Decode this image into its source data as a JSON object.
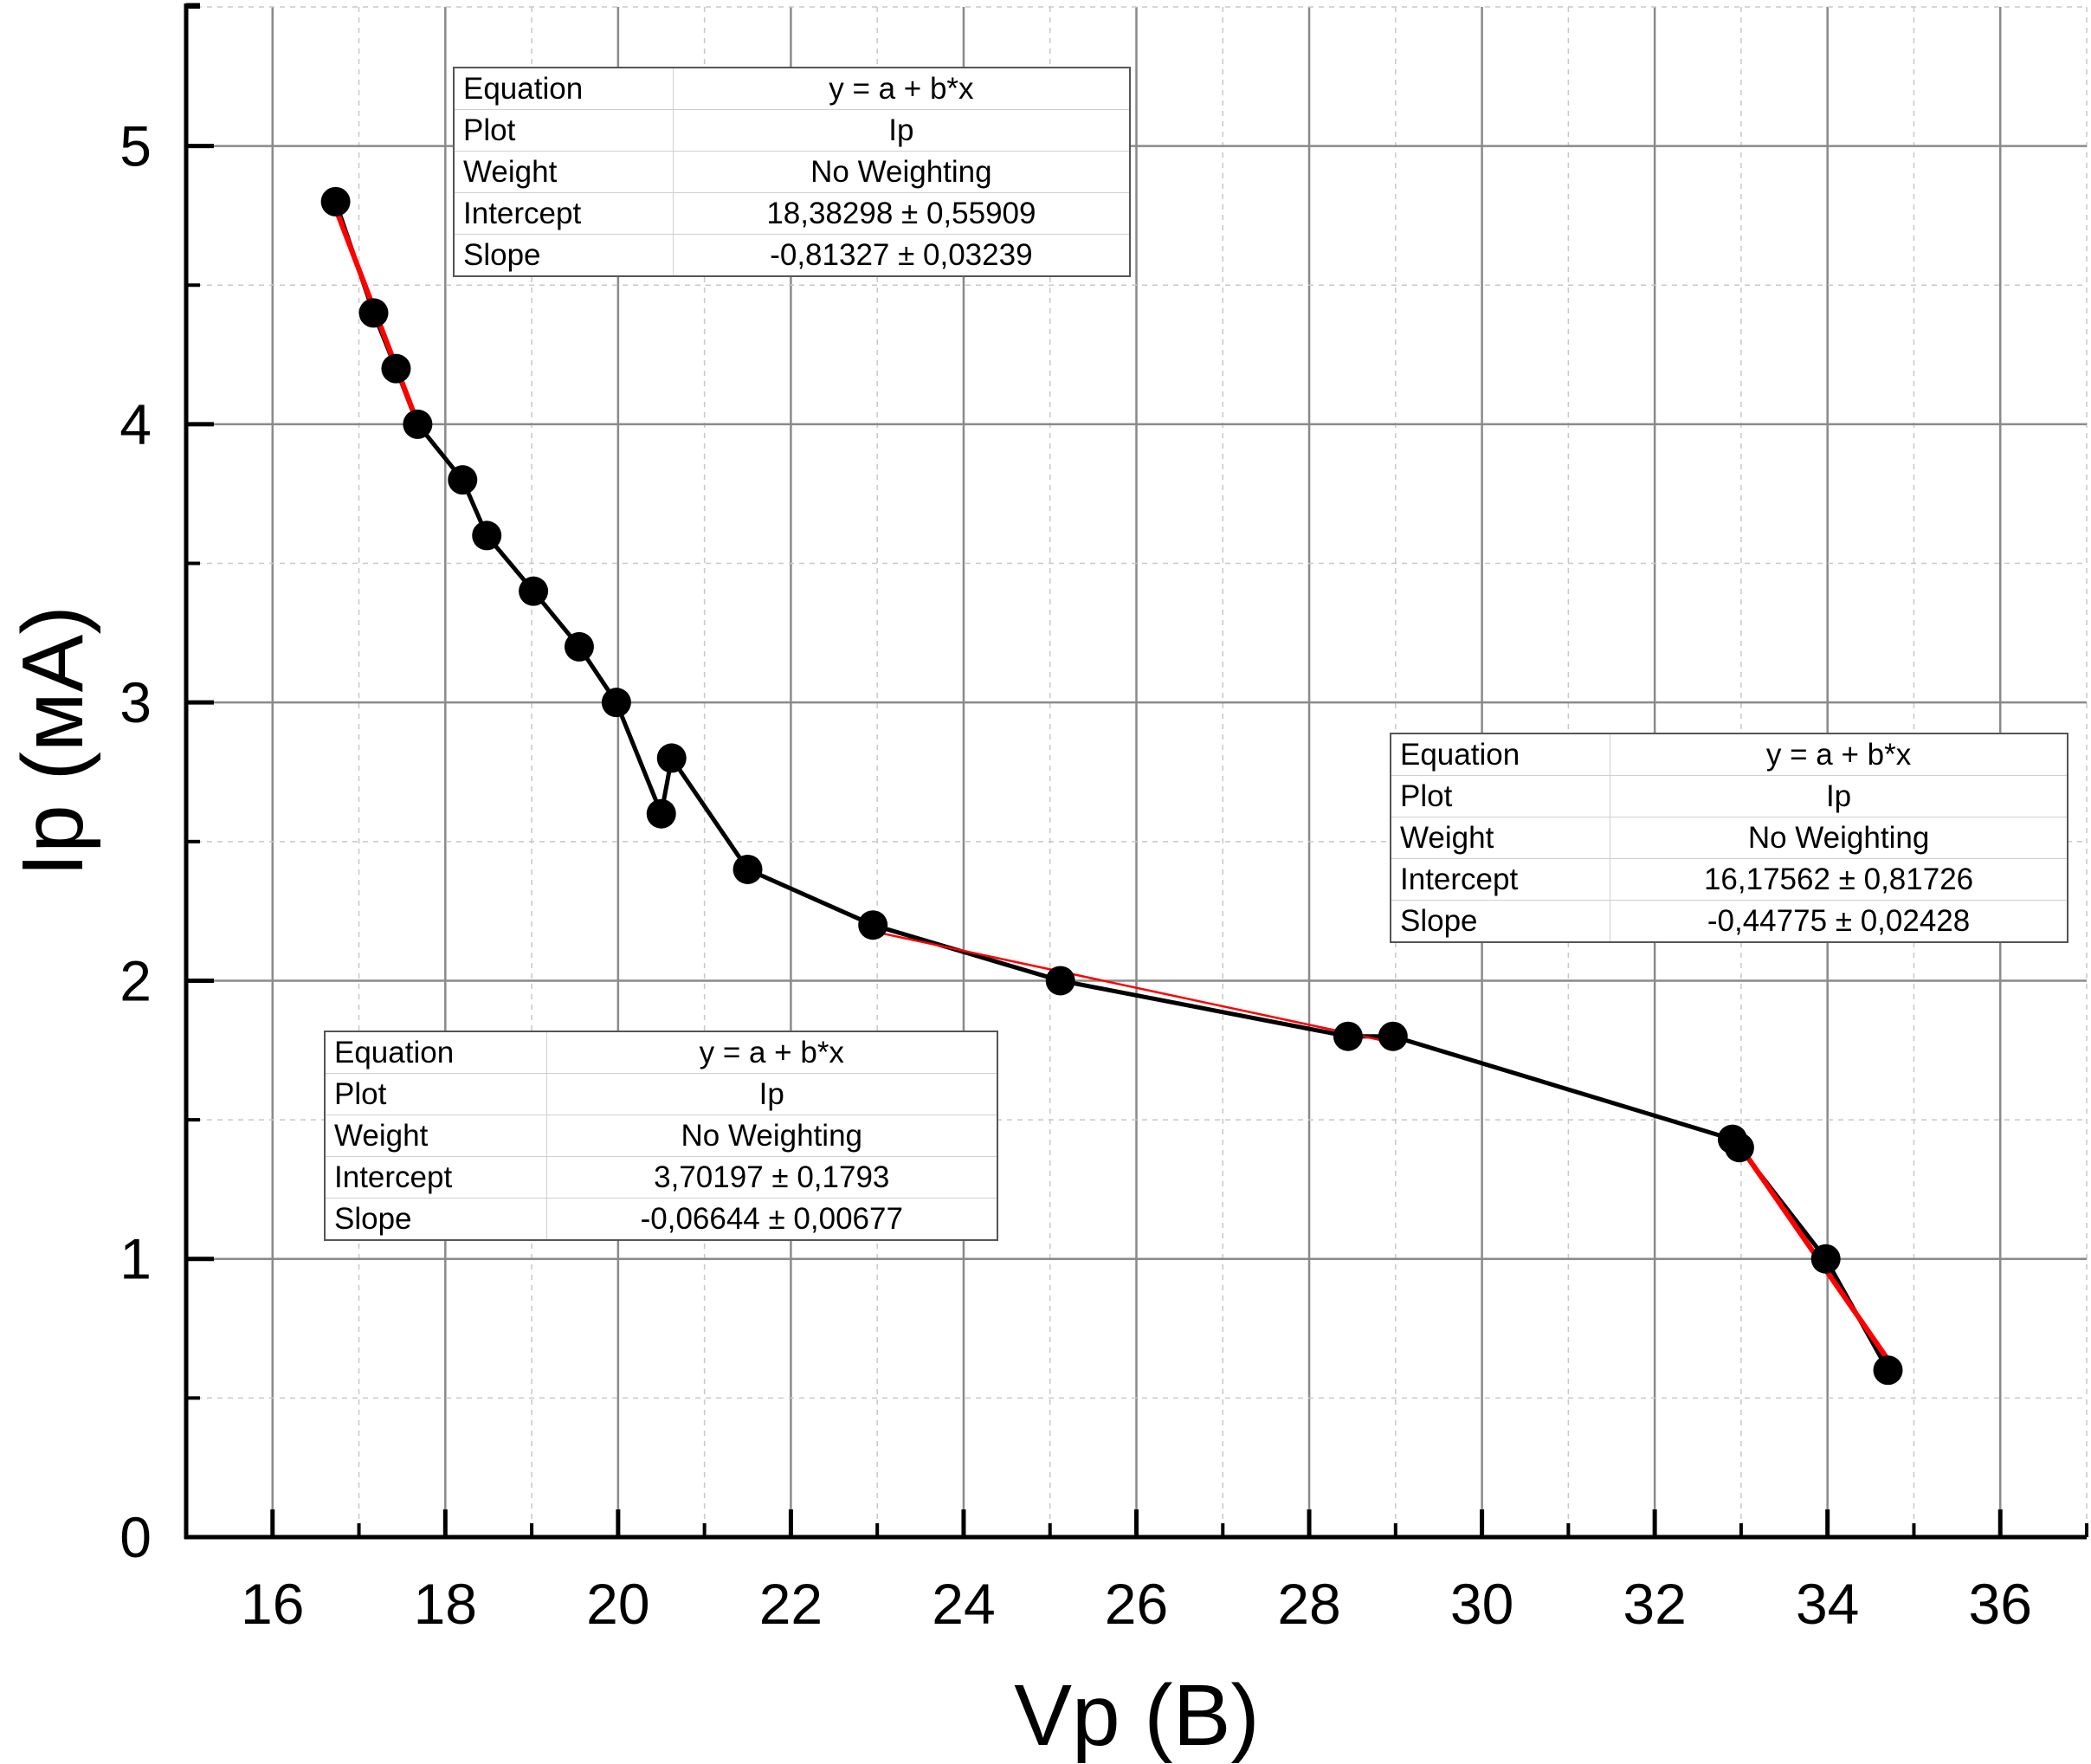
{
  "chart_data": {
    "type": "scatter",
    "xlabel": "Vp (B)",
    "ylabel": "Ip (мА)",
    "xlim": [
      15,
      37
    ],
    "ylim": [
      0,
      5.5
    ],
    "x_ticks": [
      "16",
      "18",
      "20",
      "22",
      "24",
      "26",
      "28",
      "30",
      "32",
      "34",
      "36"
    ],
    "y_ticks": [
      "0",
      "1",
      "2",
      "3",
      "4",
      "5"
    ],
    "grid": true,
    "series": [
      {
        "name": "Ip",
        "style": "line+markers",
        "x": [
          16.73,
          17.17,
          17.43,
          17.68,
          18.2,
          18.48,
          19.02,
          19.55,
          19.98,
          20.5,
          20.62,
          21.5,
          22.95,
          25.12,
          28.45,
          28.97,
          32.9,
          32.98,
          33.98,
          34.7
        ],
        "y": [
          4.8,
          4.4,
          4.2,
          4.0,
          3.8,
          3.6,
          3.4,
          3.2,
          3.0,
          2.6,
          2.8,
          2.4,
          2.2,
          2.0,
          1.8,
          1.8,
          1.43,
          1.4,
          1.0,
          0.6
        ]
      }
    ],
    "fits": [
      {
        "x": [
          16.73,
          17.68
        ],
        "y": [
          4.776,
          4.004
        ]
      },
      {
        "x": [
          22.95,
          28.97
        ],
        "y": [
          2.177,
          1.777
        ]
      },
      {
        "x": [
          32.9,
          34.7
        ],
        "y": [
          1.444,
          0.638
        ]
      }
    ],
    "colors": {
      "data": "#000000",
      "fit": "#ff0000",
      "grid_major": "#8a8a8a",
      "grid_minor": "#c8c8c8"
    },
    "fit_tables": [
      {
        "rows": [
          {
            "label": "Equation",
            "value": "y = a + b*x"
          },
          {
            "label": "Plot",
            "value": "Ip"
          },
          {
            "label": "Weight",
            "value": "No Weighting"
          },
          {
            "label": "Intercept",
            "value": "18,38298 ± 0,55909"
          },
          {
            "label": "Slope",
            "value": "-0,81327 ± 0,03239"
          }
        ]
      },
      {
        "rows": [
          {
            "label": "Equation",
            "value": "y = a + b*x"
          },
          {
            "label": "Plot",
            "value": "Ip"
          },
          {
            "label": "Weight",
            "value": "No Weighting"
          },
          {
            "label": "Intercept",
            "value": "16,17562 ± 0,81726"
          },
          {
            "label": "Slope",
            "value": "-0,44775 ± 0,02428"
          }
        ]
      },
      {
        "rows": [
          {
            "label": "Equation",
            "value": "y = a + b*x"
          },
          {
            "label": "Plot",
            "value": "Ip"
          },
          {
            "label": "Weight",
            "value": "No Weighting"
          },
          {
            "label": "Intercept",
            "value": "3,70197 ± 0,1793"
          },
          {
            "label": "Slope",
            "value": "-0,06644 ± 0,00677"
          }
        ]
      }
    ]
  }
}
